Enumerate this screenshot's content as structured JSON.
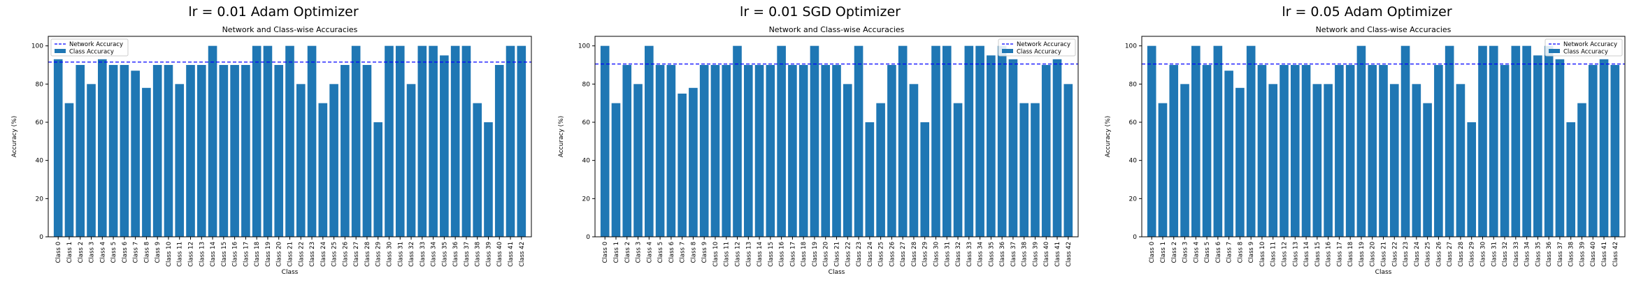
{
  "chart_data": [
    {
      "type": "bar",
      "suptitle": "lr = 0.01 Adam Optimizer",
      "title": "Network and Class-wise Accuracies",
      "xlabel": "Class",
      "ylabel": "Accuracy (%)",
      "ylim": [
        0,
        105
      ],
      "yticks": [
        0,
        20,
        40,
        60,
        80,
        100
      ],
      "grid": false,
      "legend_position": "top-left",
      "categories": [
        "Class 0",
        "Class 1",
        "Class 2",
        "Class 3",
        "Class 4",
        "Class 5",
        "Class 6",
        "Class 7",
        "Class 8",
        "Class 9",
        "Class 10",
        "Class 11",
        "Class 12",
        "Class 13",
        "Class 14",
        "Class 15",
        "Class 16",
        "Class 17",
        "Class 18",
        "Class 19",
        "Class 20",
        "Class 21",
        "Class 22",
        "Class 23",
        "Class 24",
        "Class 25",
        "Class 26",
        "Class 27",
        "Class 28",
        "Class 29",
        "Class 30",
        "Class 31",
        "Class 32",
        "Class 33",
        "Class 34",
        "Class 35",
        "Class 36",
        "Class 37",
        "Class 38",
        "Class 39",
        "Class 40",
        "Class 41",
        "Class 42"
      ],
      "series": [
        {
          "name": "Class Accuracy",
          "color": "#1f77b4",
          "values": [
            93,
            70,
            90,
            80,
            93,
            90,
            90,
            87,
            78,
            90,
            90,
            80,
            90,
            90,
            100,
            90,
            90,
            90,
            100,
            100,
            90,
            100,
            80,
            100,
            70,
            80,
            90,
            100,
            90,
            60,
            100,
            100,
            80,
            100,
            100,
            95,
            100,
            100,
            70,
            60,
            90,
            100,
            100
          ]
        }
      ],
      "reference_line": {
        "name": "Network Accuracy",
        "value": 91.5,
        "color": "#0000ff",
        "style": "dashed"
      }
    },
    {
      "type": "bar",
      "suptitle": "lr = 0.01 SGD Optimizer",
      "title": "Network and Class-wise Accuracies",
      "xlabel": "Class",
      "ylabel": "Accuracy (%)",
      "ylim": [
        0,
        105
      ],
      "yticks": [
        0,
        20,
        40,
        60,
        80,
        100
      ],
      "grid": false,
      "legend_position": "top-right",
      "categories": [
        "Class 0",
        "Class 1",
        "Class 2",
        "Class 3",
        "Class 4",
        "Class 5",
        "Class 6",
        "Class 7",
        "Class 8",
        "Class 9",
        "Class 10",
        "Class 11",
        "Class 12",
        "Class 13",
        "Class 14",
        "Class 15",
        "Class 16",
        "Class 17",
        "Class 18",
        "Class 19",
        "Class 20",
        "Class 21",
        "Class 22",
        "Class 23",
        "Class 24",
        "Class 25",
        "Class 26",
        "Class 27",
        "Class 28",
        "Class 29",
        "Class 30",
        "Class 31",
        "Class 32",
        "Class 33",
        "Class 34",
        "Class 35",
        "Class 36",
        "Class 37",
        "Class 38",
        "Class 39",
        "Class 40",
        "Class 41",
        "Class 42"
      ],
      "series": [
        {
          "name": "Class Accuracy",
          "color": "#1f77b4",
          "values": [
            100,
            70,
            90,
            80,
            100,
            90,
            90,
            75,
            78,
            90,
            90,
            90,
            100,
            90,
            90,
            90,
            100,
            90,
            90,
            100,
            90,
            90,
            80,
            100,
            60,
            70,
            90,
            100,
            80,
            60,
            100,
            100,
            70,
            100,
            100,
            95,
            100,
            93,
            70,
            70,
            90,
            93,
            80
          ]
        }
      ],
      "reference_line": {
        "name": "Network Accuracy",
        "value": 90.5,
        "color": "#0000ff",
        "style": "dashed"
      }
    },
    {
      "type": "bar",
      "suptitle": "lr = 0.05 Adam Optimizer",
      "title": "Network and Class-wise Accuracies",
      "xlabel": "Class",
      "ylabel": "Accuracy (%)",
      "ylim": [
        0,
        105
      ],
      "yticks": [
        0,
        20,
        40,
        60,
        80,
        100
      ],
      "grid": false,
      "legend_position": "top-right",
      "categories": [
        "Class 0",
        "Class 1",
        "Class 2",
        "Class 3",
        "Class 4",
        "Class 5",
        "Class 6",
        "Class 7",
        "Class 8",
        "Class 9",
        "Class 10",
        "Class 11",
        "Class 12",
        "Class 13",
        "Class 14",
        "Class 15",
        "Class 16",
        "Class 17",
        "Class 18",
        "Class 19",
        "Class 20",
        "Class 21",
        "Class 22",
        "Class 23",
        "Class 24",
        "Class 25",
        "Class 26",
        "Class 27",
        "Class 28",
        "Class 29",
        "Class 30",
        "Class 31",
        "Class 32",
        "Class 33",
        "Class 34",
        "Class 35",
        "Class 36",
        "Class 37",
        "Class 38",
        "Class 39",
        "Class 40",
        "Class 41",
        "Class 42"
      ],
      "series": [
        {
          "name": "Class Accuracy",
          "color": "#1f77b4",
          "values": [
            100,
            70,
            90,
            80,
            100,
            90,
            100,
            87,
            78,
            100,
            90,
            80,
            90,
            90,
            90,
            80,
            80,
            90,
            90,
            100,
            90,
            90,
            80,
            100,
            80,
            70,
            90,
            100,
            80,
            60,
            100,
            100,
            90,
            100,
            100,
            95,
            100,
            93,
            60,
            70,
            90,
            93,
            90
          ]
        }
      ],
      "reference_line": {
        "name": "Network Accuracy",
        "value": 90.5,
        "color": "#0000ff",
        "style": "dashed"
      }
    }
  ]
}
